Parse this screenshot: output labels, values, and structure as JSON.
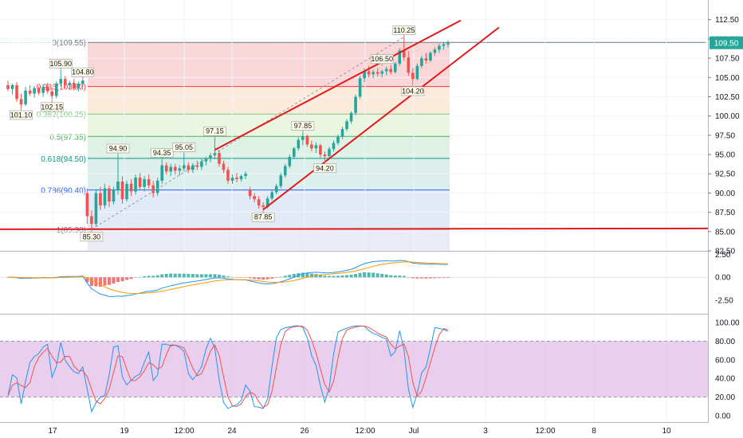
{
  "colors": {
    "up": "#26a69a",
    "down": "#ef5350",
    "trendline": "#e01a1a",
    "price_badge": "#26a69a",
    "macd_line": "#2196f3",
    "signal_line": "#ff9800",
    "stoch_k": "#2196f3",
    "stoch_d": "#ef5350",
    "stoch_band": "#e1bee7"
  },
  "price_badge": "109.50",
  "chart_data": [
    {
      "type": "candlestick",
      "ylim": [
        81.5,
        113.5
      ],
      "y_ticks": [
        "112.50",
        "110.00",
        "107.50",
        "105.00",
        "102.50",
        "100.00",
        "97.50",
        "95.00",
        "92.50",
        "90.00",
        "87.50",
        "85.00",
        "82.50"
      ],
      "x_ticks": [
        "17",
        "19",
        "12:00",
        "24",
        "26",
        "12:00",
        "Jul",
        "3",
        "12:00",
        "8",
        "10"
      ],
      "fib_levels": [
        {
          "label": "0(109.55)",
          "price": 109.55,
          "color": "#787b86"
        },
        {
          "label": "0.236(103.83)",
          "price": 103.83,
          "color": "#f23645"
        },
        {
          "label": "0.382(100.25)",
          "price": 100.25,
          "color": "#81c784"
        },
        {
          "label": "0.5(97.35)",
          "price": 97.35,
          "color": "#4caf50"
        },
        {
          "label": "0.618(94.50)",
          "price": 94.5,
          "color": "#089981"
        },
        {
          "label": "0.786(90.40)",
          "price": 90.4,
          "color": "#2962ff"
        },
        {
          "label": "1(85.30)",
          "price": 85.3,
          "color": "#787b86"
        }
      ],
      "fib_bands": [
        "#f8d0d2",
        "#fbe8d3",
        "#e6f5d9",
        "#d7f0e0",
        "#d6ece9",
        "#dde6f5",
        "#e8e8f4",
        "#d9d6f4"
      ],
      "swing_labels": [
        "105.90",
        "104.80",
        "101.10",
        "102.15",
        "94.90",
        "94.35",
        "95.05",
        "97.15",
        "87.85",
        "97.85",
        "94.20",
        "106.50",
        "110.25",
        "104.20",
        "85.30"
      ],
      "horizontal_line": 85.3,
      "series": [
        {
          "t": 0,
          "o": 104.0,
          "h": 104.6,
          "l": 103.2,
          "c": 103.5
        },
        {
          "t": 1,
          "o": 103.5,
          "h": 104.2,
          "l": 102.8,
          "c": 104.0
        },
        {
          "t": 2,
          "o": 104.0,
          "h": 104.4,
          "l": 101.8,
          "c": 102.2
        },
        {
          "t": 3,
          "o": 102.2,
          "h": 102.9,
          "l": 101.1,
          "c": 101.5
        },
        {
          "t": 4,
          "o": 101.5,
          "h": 103.8,
          "l": 101.3,
          "c": 103.3
        },
        {
          "t": 5,
          "o": 103.3,
          "h": 104.0,
          "l": 102.6,
          "c": 102.9
        },
        {
          "t": 6,
          "o": 102.9,
          "h": 103.9,
          "l": 102.4,
          "c": 103.6
        },
        {
          "t": 7,
          "o": 103.6,
          "h": 103.8,
          "l": 102.7,
          "c": 103.0
        },
        {
          "t": 8,
          "o": 103.0,
          "h": 104.1,
          "l": 102.5,
          "c": 103.8
        },
        {
          "t": 9,
          "o": 103.8,
          "h": 104.3,
          "l": 102.9,
          "c": 103.2
        },
        {
          "t": 10,
          "o": 103.2,
          "h": 103.6,
          "l": 102.2,
          "c": 102.6
        },
        {
          "t": 11,
          "o": 102.6,
          "h": 104.5,
          "l": 102.3,
          "c": 104.2
        },
        {
          "t": 12,
          "o": 104.2,
          "h": 105.9,
          "l": 103.8,
          "c": 104.8
        },
        {
          "t": 13,
          "o": 104.8,
          "h": 105.2,
          "l": 103.6,
          "c": 104.0
        },
        {
          "t": 14,
          "o": 104.0,
          "h": 104.6,
          "l": 103.4,
          "c": 104.3
        },
        {
          "t": 15,
          "o": 104.3,
          "h": 104.8,
          "l": 103.3,
          "c": 103.6
        },
        {
          "t": 16,
          "o": 103.6,
          "h": 104.5,
          "l": 103.2,
          "c": 104.2
        },
        {
          "t": 17,
          "o": 104.2,
          "h": 104.8,
          "l": 103.8,
          "c": 104.6
        },
        {
          "t": 18,
          "o": 90.0,
          "h": 90.6,
          "l": 86.0,
          "c": 87.0
        },
        {
          "t": 19,
          "o": 87.0,
          "h": 87.8,
          "l": 85.3,
          "c": 86.0
        },
        {
          "t": 20,
          "o": 86.0,
          "h": 90.5,
          "l": 85.6,
          "c": 90.0
        },
        {
          "t": 21,
          "o": 90.0,
          "h": 90.8,
          "l": 87.8,
          "c": 88.4
        },
        {
          "t": 22,
          "o": 88.4,
          "h": 91.2,
          "l": 88.0,
          "c": 90.6
        },
        {
          "t": 23,
          "o": 90.6,
          "h": 91.0,
          "l": 88.2,
          "c": 88.9
        },
        {
          "t": 24,
          "o": 88.9,
          "h": 90.8,
          "l": 88.5,
          "c": 90.4
        },
        {
          "t": 25,
          "o": 90.4,
          "h": 94.9,
          "l": 89.8,
          "c": 91.5
        },
        {
          "t": 26,
          "o": 91.5,
          "h": 92.2,
          "l": 88.6,
          "c": 89.2
        },
        {
          "t": 27,
          "o": 89.2,
          "h": 91.6,
          "l": 88.9,
          "c": 91.2
        },
        {
          "t": 28,
          "o": 91.2,
          "h": 91.8,
          "l": 89.6,
          "c": 90.2
        },
        {
          "t": 29,
          "o": 90.2,
          "h": 92.4,
          "l": 89.8,
          "c": 92.0
        },
        {
          "t": 30,
          "o": 92.0,
          "h": 92.6,
          "l": 90.4,
          "c": 90.8
        },
        {
          "t": 31,
          "o": 90.8,
          "h": 92.2,
          "l": 90.2,
          "c": 91.8
        },
        {
          "t": 32,
          "o": 91.8,
          "h": 92.4,
          "l": 90.6,
          "c": 91.0
        },
        {
          "t": 33,
          "o": 91.0,
          "h": 91.6,
          "l": 89.4,
          "c": 90.0
        },
        {
          "t": 34,
          "o": 90.0,
          "h": 92.0,
          "l": 89.6,
          "c": 91.6
        },
        {
          "t": 35,
          "o": 91.6,
          "h": 94.35,
          "l": 91.2,
          "c": 93.6
        },
        {
          "t": 36,
          "o": 93.6,
          "h": 94.0,
          "l": 92.4,
          "c": 92.8
        },
        {
          "t": 37,
          "o": 92.8,
          "h": 93.8,
          "l": 92.2,
          "c": 93.4
        },
        {
          "t": 38,
          "o": 93.4,
          "h": 93.8,
          "l": 92.4,
          "c": 92.9
        },
        {
          "t": 39,
          "o": 92.9,
          "h": 93.6,
          "l": 92.3,
          "c": 93.2
        },
        {
          "t": 40,
          "o": 93.2,
          "h": 95.05,
          "l": 92.8,
          "c": 93.6
        },
        {
          "t": 41,
          "o": 93.6,
          "h": 94.0,
          "l": 92.6,
          "c": 93.0
        },
        {
          "t": 42,
          "o": 93.0,
          "h": 93.9,
          "l": 92.6,
          "c": 93.6
        },
        {
          "t": 43,
          "o": 93.6,
          "h": 94.2,
          "l": 93.0,
          "c": 93.4
        },
        {
          "t": 44,
          "o": 93.4,
          "h": 94.4,
          "l": 93.0,
          "c": 94.1
        },
        {
          "t": 45,
          "o": 94.1,
          "h": 94.7,
          "l": 93.6,
          "c": 94.5
        },
        {
          "t": 46,
          "o": 94.5,
          "h": 95.2,
          "l": 94.0,
          "c": 94.9
        },
        {
          "t": 47,
          "o": 94.9,
          "h": 97.15,
          "l": 94.4,
          "c": 95.2
        },
        {
          "t": 48,
          "o": 95.2,
          "h": 95.6,
          "l": 93.4,
          "c": 93.8
        },
        {
          "t": 49,
          "o": 93.8,
          "h": 94.2,
          "l": 92.6,
          "c": 93.0
        },
        {
          "t": 50,
          "o": 93.0,
          "h": 93.4,
          "l": 91.2,
          "c": 91.6
        },
        {
          "t": 51,
          "o": 91.6,
          "h": 92.4,
          "l": 91.2,
          "c": 92.0
        },
        {
          "t": 52,
          "o": 92.0,
          "h": 92.6,
          "l": 91.4,
          "c": 91.8
        },
        {
          "t": 53,
          "o": 91.8,
          "h": 92.4,
          "l": 91.5,
          "c": 92.2
        },
        {
          "t": 54,
          "o": 92.2,
          "h": 92.8,
          "l": 91.8,
          "c": 92.5
        },
        {
          "t": 55,
          "o": 90.4,
          "h": 90.8,
          "l": 89.2,
          "c": 89.6
        },
        {
          "t": 56,
          "o": 89.6,
          "h": 90.0,
          "l": 88.8,
          "c": 89.2
        },
        {
          "t": 57,
          "o": 89.2,
          "h": 89.6,
          "l": 88.0,
          "c": 88.4
        },
        {
          "t": 58,
          "o": 88.4,
          "h": 88.8,
          "l": 87.85,
          "c": 88.2
        },
        {
          "t": 59,
          "o": 88.2,
          "h": 89.6,
          "l": 88.0,
          "c": 89.3
        },
        {
          "t": 60,
          "o": 89.3,
          "h": 90.4,
          "l": 89.0,
          "c": 90.1
        },
        {
          "t": 61,
          "o": 90.1,
          "h": 91.2,
          "l": 89.8,
          "c": 90.9
        },
        {
          "t": 62,
          "o": 90.9,
          "h": 92.6,
          "l": 90.6,
          "c": 92.3
        },
        {
          "t": 63,
          "o": 92.3,
          "h": 93.8,
          "l": 92.0,
          "c": 93.5
        },
        {
          "t": 64,
          "o": 93.5,
          "h": 95.0,
          "l": 93.2,
          "c": 94.7
        },
        {
          "t": 65,
          "o": 94.7,
          "h": 96.0,
          "l": 94.4,
          "c": 95.8
        },
        {
          "t": 66,
          "o": 95.8,
          "h": 97.2,
          "l": 95.5,
          "c": 96.9
        },
        {
          "t": 67,
          "o": 96.9,
          "h": 97.85,
          "l": 96.2,
          "c": 97.4
        },
        {
          "t": 68,
          "o": 97.4,
          "h": 97.6,
          "l": 96.0,
          "c": 96.3
        },
        {
          "t": 69,
          "o": 96.3,
          "h": 96.8,
          "l": 95.4,
          "c": 95.8
        },
        {
          "t": 70,
          "o": 95.8,
          "h": 96.6,
          "l": 95.2,
          "c": 96.2
        },
        {
          "t": 71,
          "o": 96.2,
          "h": 96.4,
          "l": 94.6,
          "c": 95.0
        },
        {
          "t": 72,
          "o": 95.0,
          "h": 95.4,
          "l": 94.2,
          "c": 94.8
        },
        {
          "t": 73,
          "o": 94.8,
          "h": 96.0,
          "l": 94.5,
          "c": 95.7
        },
        {
          "t": 74,
          "o": 95.7,
          "h": 96.8,
          "l": 95.4,
          "c": 96.5
        },
        {
          "t": 75,
          "o": 96.5,
          "h": 97.6,
          "l": 96.2,
          "c": 97.3
        },
        {
          "t": 76,
          "o": 97.3,
          "h": 98.6,
          "l": 97.0,
          "c": 98.3
        },
        {
          "t": 77,
          "o": 98.3,
          "h": 99.6,
          "l": 98.0,
          "c": 99.3
        },
        {
          "t": 78,
          "o": 99.3,
          "h": 100.6,
          "l": 99.0,
          "c": 100.4
        },
        {
          "t": 79,
          "o": 100.4,
          "h": 102.8,
          "l": 100.1,
          "c": 102.5
        },
        {
          "t": 80,
          "o": 102.5,
          "h": 105.2,
          "l": 102.2,
          "c": 104.9
        },
        {
          "t": 81,
          "o": 104.9,
          "h": 106.2,
          "l": 104.4,
          "c": 105.8
        },
        {
          "t": 82,
          "o": 105.8,
          "h": 106.5,
          "l": 105.0,
          "c": 105.4
        },
        {
          "t": 83,
          "o": 105.4,
          "h": 106.0,
          "l": 104.9,
          "c": 105.7
        },
        {
          "t": 84,
          "o": 105.7,
          "h": 106.2,
          "l": 105.1,
          "c": 105.5
        },
        {
          "t": 85,
          "o": 105.5,
          "h": 106.0,
          "l": 105.0,
          "c": 105.8
        },
        {
          "t": 86,
          "o": 105.8,
          "h": 106.4,
          "l": 105.3,
          "c": 106.1
        },
        {
          "t": 87,
          "o": 106.1,
          "h": 106.6,
          "l": 105.4,
          "c": 105.7
        },
        {
          "t": 88,
          "o": 105.7,
          "h": 107.0,
          "l": 105.5,
          "c": 106.8
        },
        {
          "t": 89,
          "o": 106.8,
          "h": 108.8,
          "l": 106.5,
          "c": 108.5
        },
        {
          "t": 90,
          "o": 108.5,
          "h": 110.25,
          "l": 107.2,
          "c": 107.6
        },
        {
          "t": 91,
          "o": 107.6,
          "h": 108.4,
          "l": 105.2,
          "c": 105.6
        },
        {
          "t": 92,
          "o": 105.6,
          "h": 106.2,
          "l": 104.2,
          "c": 104.8
        },
        {
          "t": 93,
          "o": 104.8,
          "h": 106.8,
          "l": 104.6,
          "c": 106.5
        },
        {
          "t": 94,
          "o": 106.5,
          "h": 107.8,
          "l": 106.2,
          "c": 107.5
        },
        {
          "t": 95,
          "o": 107.5,
          "h": 108.2,
          "l": 106.8,
          "c": 107.2
        },
        {
          "t": 96,
          "o": 107.2,
          "h": 108.4,
          "l": 107.0,
          "c": 108.2
        },
        {
          "t": 97,
          "o": 108.2,
          "h": 108.9,
          "l": 107.8,
          "c": 108.6
        },
        {
          "t": 98,
          "o": 108.6,
          "h": 109.4,
          "l": 108.2,
          "c": 109.1
        },
        {
          "t": 99,
          "o": 109.1,
          "h": 109.6,
          "l": 108.6,
          "c": 109.3
        },
        {
          "t": 100,
          "o": 109.3,
          "h": 109.8,
          "l": 108.9,
          "c": 109.5
        }
      ]
    },
    {
      "type": "macd",
      "ylim": [
        -3.8,
        2.8
      ],
      "y_ticks": [
        "2.50",
        "0.00",
        "-2.50"
      ]
    },
    {
      "type": "stochastic",
      "ylim": [
        -5,
        105
      ],
      "y_ticks": [
        "100.00",
        "80.00",
        "60.00",
        "40.00",
        "20.00",
        "0.00"
      ],
      "band": [
        20,
        80
      ]
    }
  ]
}
